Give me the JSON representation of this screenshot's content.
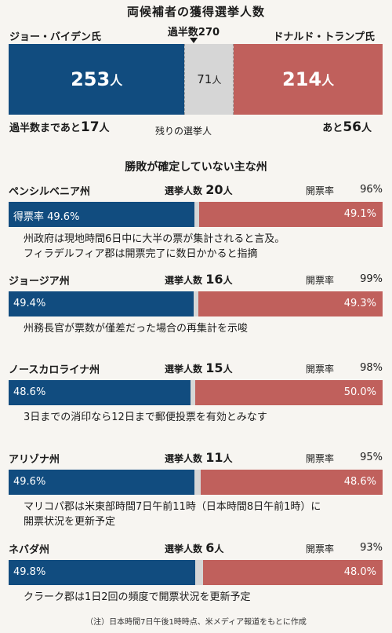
{
  "header": {
    "title": "両候補者の獲得選挙人数",
    "left_candidate": "ジョー・バイデン氏",
    "right_candidate": "ドナルド・トランプ氏",
    "majority_label": "過半数270",
    "left_remaining_prefix": "過半数まであと",
    "left_remaining_value": "17",
    "left_remaining_unit": "人",
    "right_remaining_prefix": "あと",
    "right_remaining_value": "56",
    "right_remaining_unit": "人",
    "remaining_label": "残りの選挙人",
    "unit": "人"
  },
  "section": {
    "subtitle": "勝敗が確定していない主な州",
    "ev_label": "選挙人数",
    "report_label": "開票率"
  },
  "footnote": "（注）日本時間7日午後1時時点、米メディア報道をもとに作成",
  "colors": {
    "biden": "#114c7f",
    "trump": "#c0605c",
    "undecided": "#d6d6d6"
  },
  "chart_data": [
    {
      "type": "bar",
      "stacked": true,
      "categories": [
        "ジョー・バイデン氏",
        "残りの選挙人",
        "ドナルド・トランプ氏"
      ],
      "values": [
        253,
        71,
        214
      ],
      "threshold": 270,
      "xlim": [
        0,
        538
      ]
    },
    {
      "type": "bar",
      "stacked": true,
      "states": [
        {
          "name": "ペンシルベニア州",
          "electors": "20",
          "reported": "96%",
          "biden": 49.6,
          "trump": 49.1,
          "biden_label": "得票率 49.6%",
          "trump_label": "49.1%",
          "notes": [
            "州政府は現地時間6日中に大半の票が集計されると言及。",
            "フィラデルフィア郡は開票完了に数日かかると指摘"
          ]
        },
        {
          "name": "ジョージア州",
          "electors": "16",
          "reported": "99%",
          "biden": 49.4,
          "trump": 49.3,
          "biden_label": "49.4%",
          "trump_label": "49.3%",
          "notes": [
            "州務長官が票数が僅差だった場合の再集計を示唆"
          ]
        },
        {
          "name": "ノースカロライナ州",
          "electors": "15",
          "reported": "98%",
          "biden": 48.6,
          "trump": 50.0,
          "biden_label": "48.6%",
          "trump_label": "50.0%",
          "notes": [
            "3日までの消印なら12日まで郵便投票を有効とみなす"
          ]
        },
        {
          "name": "アリゾナ州",
          "electors": "11",
          "reported": "95%",
          "biden": 49.6,
          "trump": 48.6,
          "biden_label": "49.6%",
          "trump_label": "48.6%",
          "notes": [
            "マリコパ郡は米東部時間7日午前11時（日本時間8日午前1時）に",
            "開票状況を更新予定"
          ]
        },
        {
          "name": "ネバダ州",
          "electors": "6",
          "reported": "93%",
          "biden": 49.8,
          "trump": 48.0,
          "biden_label": "49.8%",
          "trump_label": "48.0%",
          "notes": [
            "クラーク郡は1日2回の頻度で開票状況を更新予定"
          ]
        }
      ]
    }
  ]
}
